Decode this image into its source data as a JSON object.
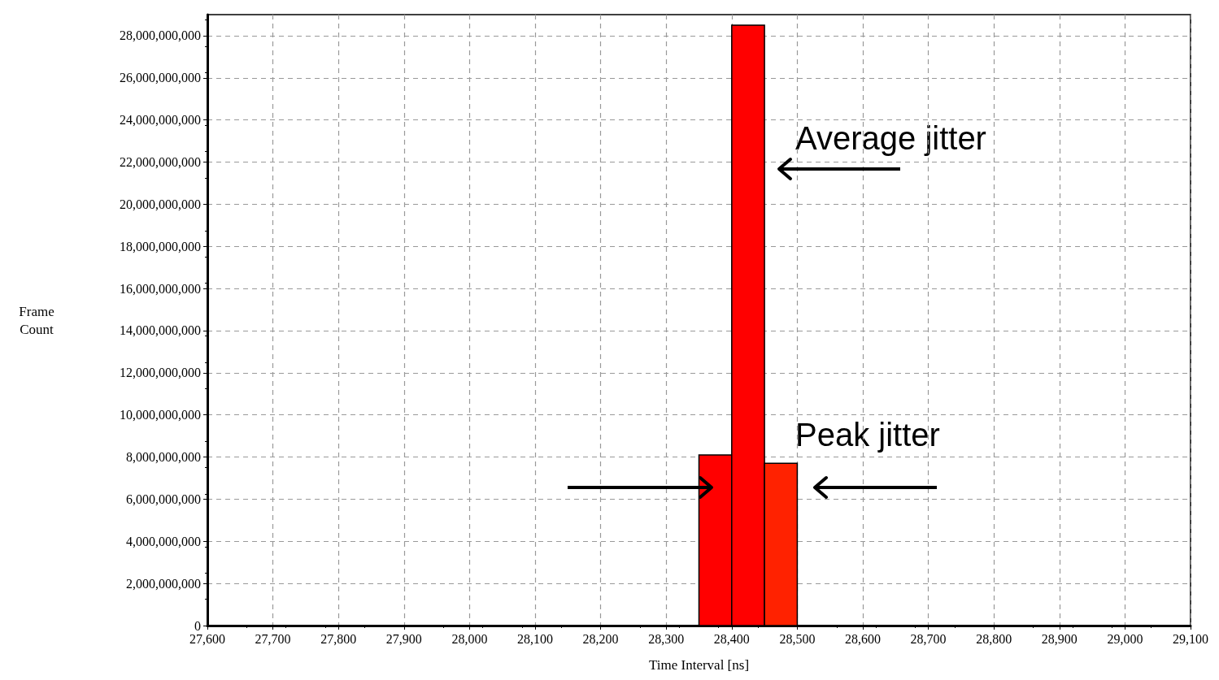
{
  "chart_data": {
    "type": "histogram",
    "xlabel": "Time Interval [ns]",
    "ylabel": "Frame Count",
    "bins": [
      28350,
      28400,
      28450,
      28500
    ],
    "values": [
      8100000000,
      28500000000,
      7700000000
    ],
    "colors": [
      "#ff0000",
      "#ff0000",
      "#ff2200"
    ],
    "xlim": [
      27600,
      29100
    ],
    "xticks": [
      {
        "value": 27600,
        "label": "27,600"
      },
      {
        "value": 27700,
        "label": "27,700"
      },
      {
        "value": 27800,
        "label": "27,800"
      },
      {
        "value": 27900,
        "label": "27,900"
      },
      {
        "value": 28000,
        "label": "28,000"
      },
      {
        "value": 28100,
        "label": "28,100"
      },
      {
        "value": 28200,
        "label": "28,200"
      },
      {
        "value": 28300,
        "label": "28,300"
      },
      {
        "value": 28400,
        "label": "28,400"
      },
      {
        "value": 28500,
        "label": "28,500"
      },
      {
        "value": 28600,
        "label": "28,600"
      },
      {
        "value": 28700,
        "label": "28,700"
      },
      {
        "value": 28800,
        "label": "28,800"
      },
      {
        "value": 28900,
        "label": "28,900"
      },
      {
        "value": 29000,
        "label": "29,000"
      },
      {
        "value": 29100,
        "label": "29,100"
      }
    ],
    "ylim": [
      0,
      29000000000
    ],
    "yticks": [
      0,
      {
        "value": 2000000000,
        "label": "2,000,000,000"
      },
      {
        "value": 4000000000,
        "label": "4,000,000,000"
      },
      {
        "value": 6000000000,
        "label": "6,000,000,000"
      },
      {
        "value": 8000000000,
        "label": "8,000,000,000"
      },
      {
        "value": 10000000000,
        "label": "10,000,000,000"
      },
      {
        "value": 12000000000,
        "label": "12,000,000,000"
      },
      {
        "value": 14000000000,
        "label": "14,000,000,000"
      },
      {
        "value": 16000000000,
        "label": "16,000,000,000"
      },
      {
        "value": 18000000000,
        "label": "18,000,000,000"
      },
      {
        "value": 20000000000,
        "label": "20,000,000,000"
      },
      {
        "value": 22000000000,
        "label": "22,000,000,000"
      },
      {
        "value": 24000000000,
        "label": "24,000,000,000"
      },
      {
        "value": 26000000000,
        "label": "26,000,000,000"
      },
      {
        "value": 28000000000,
        "label": "28,000,000,000"
      }
    ],
    "grid": true,
    "annotations": [
      "Average jitter",
      "Peak jitter"
    ]
  }
}
